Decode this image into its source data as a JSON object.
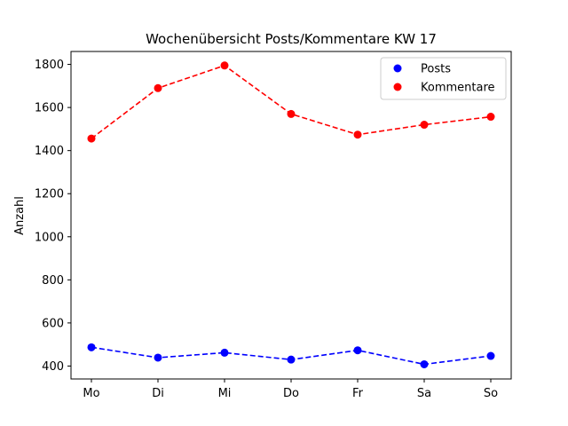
{
  "chart_data": {
    "type": "line",
    "title": "Wochenübersicht Posts/Kommentare KW 17",
    "xlabel": "",
    "ylabel": "Anzahl",
    "categories": [
      "Mo",
      "Di",
      "Mi",
      "Do",
      "Fr",
      "Sa",
      "So"
    ],
    "ylim": [
      340,
      1860
    ],
    "yticks": [
      400,
      600,
      800,
      1000,
      1200,
      1400,
      1600,
      1800
    ],
    "grid": false,
    "legend_position": "top-right",
    "series": [
      {
        "name": "Posts",
        "color": "#0000ff",
        "line_style": "dashed",
        "marker": "circle",
        "values": [
          487,
          439,
          462,
          430,
          473,
          408,
          447
        ]
      },
      {
        "name": "Kommentare",
        "color": "#ff0000",
        "line_style": "dashed",
        "marker": "circle",
        "values": [
          1456,
          1690,
          1795,
          1570,
          1474,
          1520,
          1557
        ]
      }
    ]
  }
}
